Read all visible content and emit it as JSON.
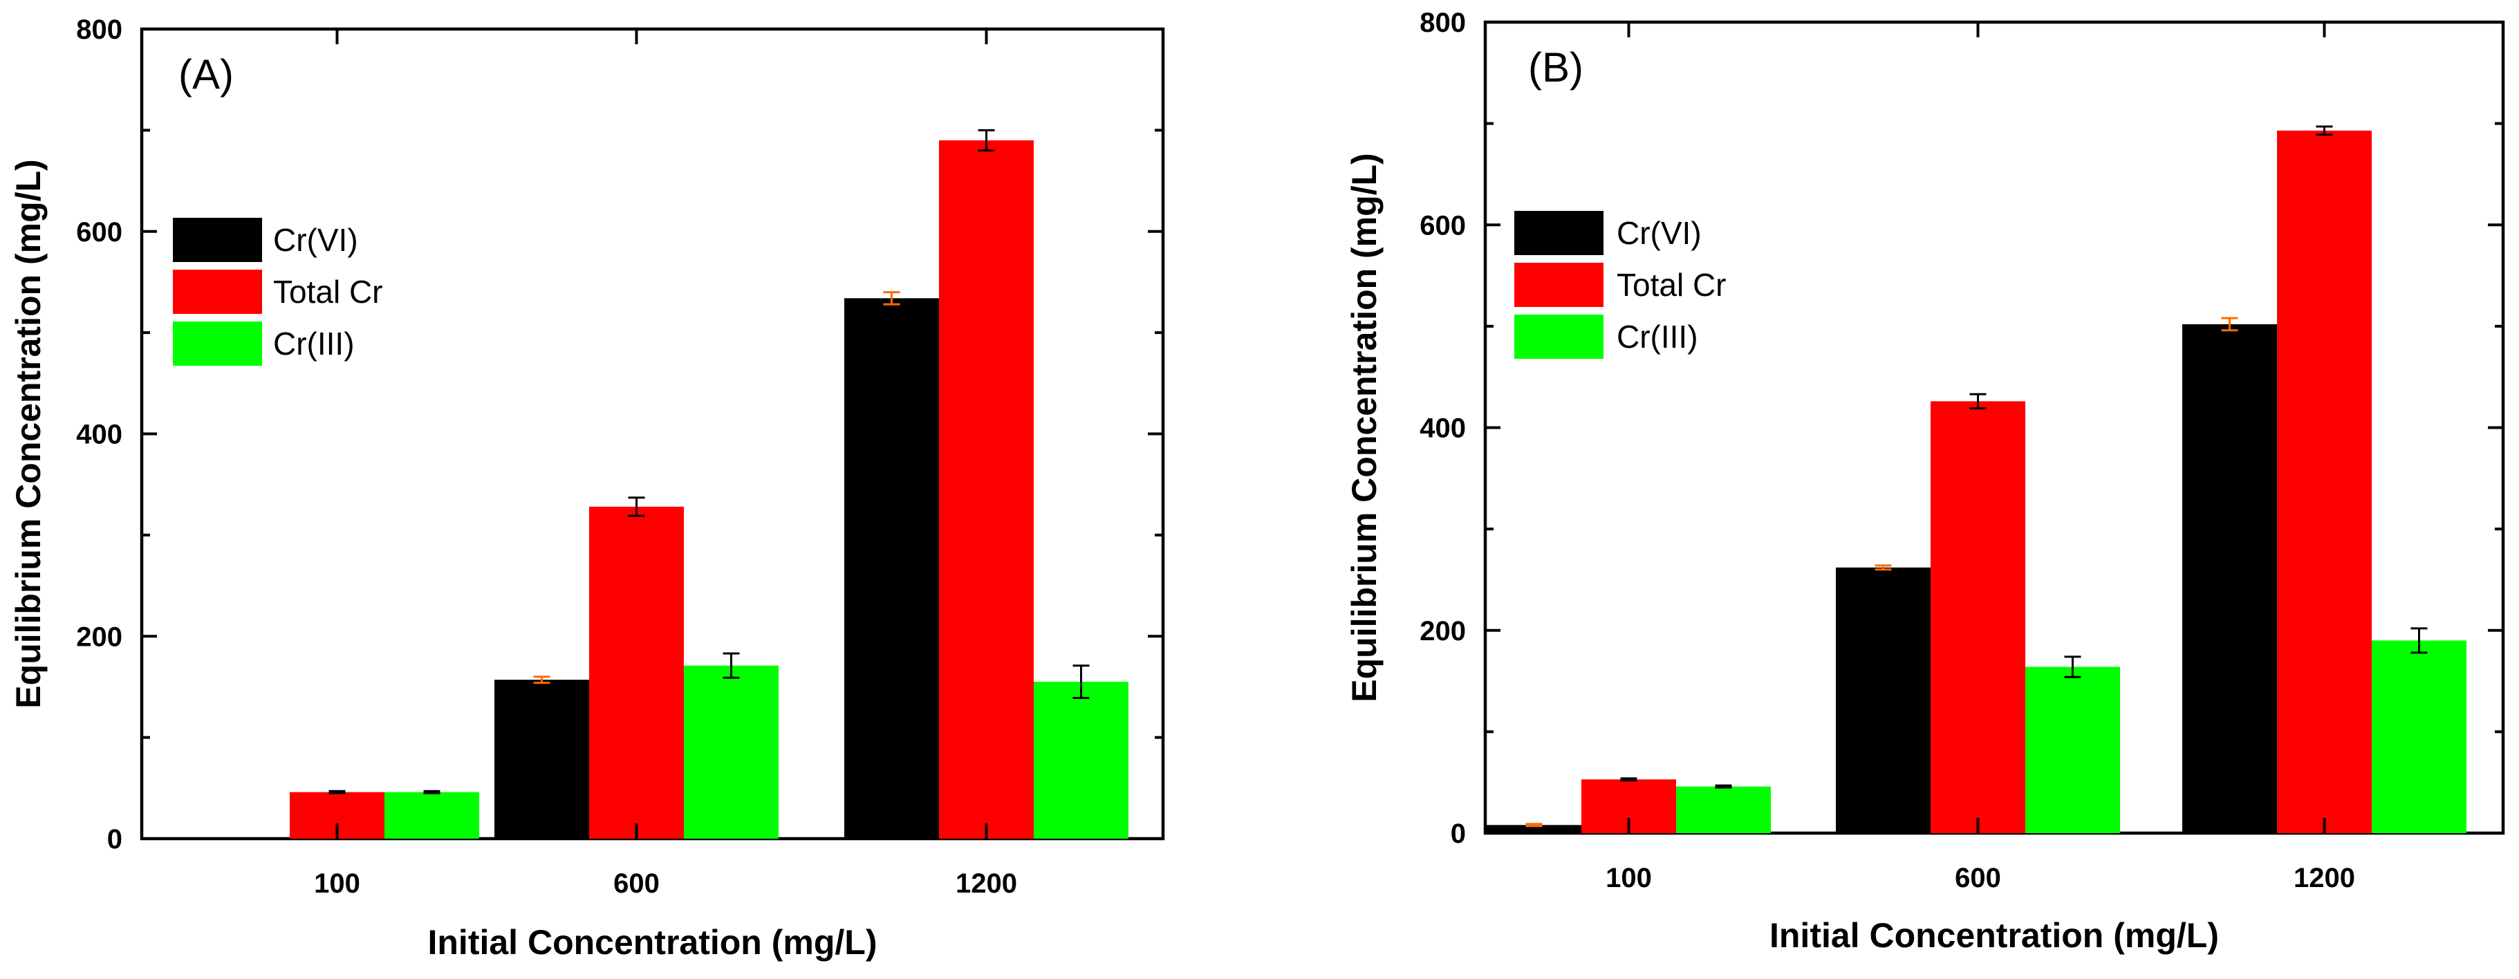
{
  "chart_data": [
    {
      "type": "bar",
      "panel_label": "(A)",
      "xlabel": "Initial Concentration (mg/L)",
      "ylabel": "Equilibrium Concentration (mg/L)",
      "ylim": [
        0,
        800
      ],
      "yticks": [
        "0",
        "200",
        "400",
        "600",
        "800"
      ],
      "categories": [
        "100",
        "600",
        "1200"
      ],
      "legend_position": "upper-left",
      "grid": false,
      "series": [
        {
          "name": "Cr(VI)",
          "color": "#000000",
          "values": [
            null,
            157,
            534
          ],
          "errors": [
            null,
            3,
            6
          ],
          "error_color": "#ff6a00"
        },
        {
          "name": "Total Cr",
          "color": "#ff0000",
          "values": [
            46,
            328,
            690
          ],
          "errors": [
            1,
            9,
            10
          ],
          "error_color": "#000000"
        },
        {
          "name": "Cr(III)",
          "color": "#00ff00",
          "values": [
            46,
            171,
            155
          ],
          "errors": [
            1,
            12,
            16
          ],
          "error_color": "#000000"
        }
      ]
    },
    {
      "type": "bar",
      "panel_label": "(B)",
      "xlabel": "Initial Concentration (mg/L)",
      "ylabel": "Equilibrium Concentration (mg/L)",
      "ylim": [
        0,
        800
      ],
      "yticks": [
        "0",
        "200",
        "400",
        "600",
        "800"
      ],
      "categories": [
        "100",
        "600",
        "1200"
      ],
      "legend_position": "upper-left",
      "grid": false,
      "series": [
        {
          "name": "Cr(VI)",
          "color": "#000000",
          "values": [
            8,
            262,
            502
          ],
          "errors": [
            1,
            2,
            6
          ],
          "error_color": "#ff6a00"
        },
        {
          "name": "Total Cr",
          "color": "#ff0000",
          "values": [
            53,
            426,
            693
          ],
          "errors": [
            1,
            7,
            4
          ],
          "error_color": "#000000"
        },
        {
          "name": "Cr(III)",
          "color": "#00ff00",
          "values": [
            46,
            164,
            190
          ],
          "errors": [
            1,
            10,
            12
          ],
          "error_color": "#000000"
        }
      ]
    }
  ]
}
